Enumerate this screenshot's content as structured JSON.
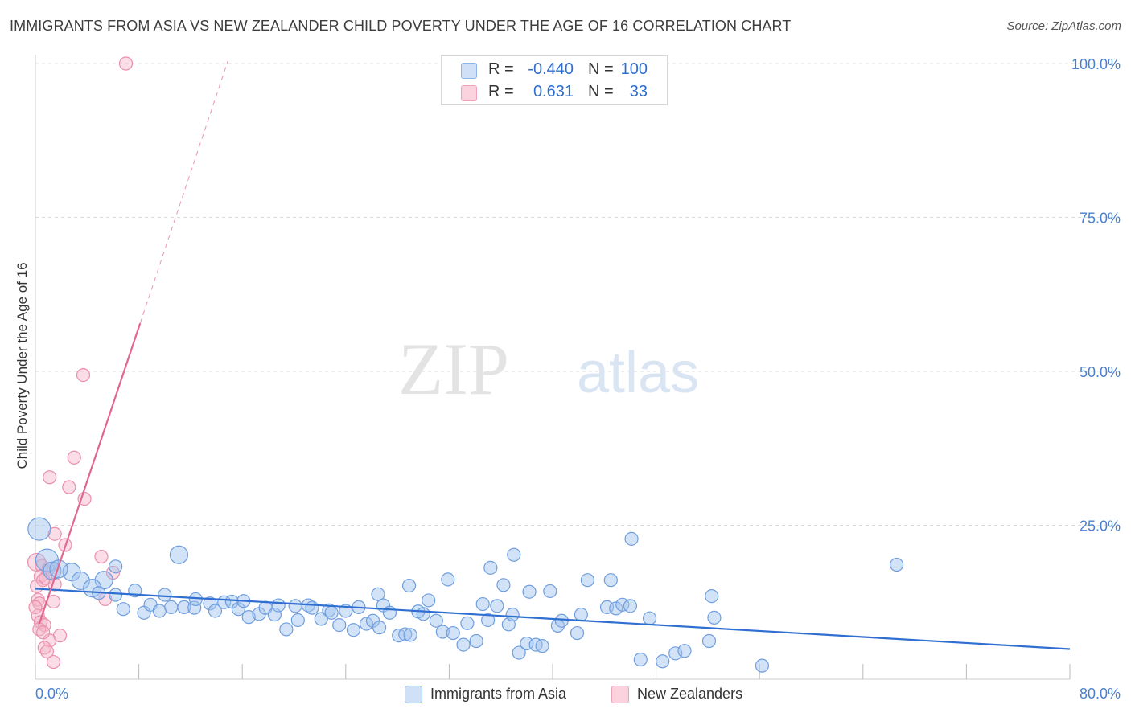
{
  "title": "IMMIGRANTS FROM ASIA VS NEW ZEALANDER CHILD POVERTY UNDER THE AGE OF 16 CORRELATION CHART",
  "source": "Source: ZipAtlas.com",
  "watermark": {
    "zip": "ZIP",
    "atlas": "atlas"
  },
  "legend": [
    {
      "r_label": "R =",
      "r_value": "-0.440",
      "n_label": "N =",
      "n_value": "100",
      "color": "#9ec1ee"
    },
    {
      "r_label": "R =",
      "r_value": "0.631",
      "n_label": "N =",
      "n_value": "33",
      "color": "#f5b3c7"
    }
  ],
  "bottom_legend": [
    {
      "label": "Immigrants from Asia",
      "color": "#9ec1ee"
    },
    {
      "label": "New Zealanders",
      "color": "#f5b3c7"
    }
  ],
  "colors": {
    "blue_fill": "#9ec1ee",
    "blue_stroke": "#6f9ede",
    "blue_line": "#2f6fd1",
    "pink_fill": "#f5b3c7",
    "pink_stroke": "#ea8fac",
    "pink_line": "#e2678f",
    "tick_label": "#4a80cf",
    "grid": "#dcdcdc"
  },
  "chart_data": {
    "type": "scatter",
    "title": "IMMIGRANTS FROM ASIA VS NEW ZEALANDER CHILD POVERTY UNDER THE AGE OF 16 CORRELATION CHART",
    "xlabel": "",
    "ylabel": "Child Poverty Under the Age of 16",
    "xlim": [
      0,
      80
    ],
    "ylim": [
      0,
      100
    ],
    "x_tick_labels": [
      {
        "value": 0,
        "label": "0.0%"
      },
      {
        "value": 80,
        "label": "80.0%"
      }
    ],
    "y_tick_labels": [
      {
        "value": 25,
        "label": "25.0%"
      },
      {
        "value": 50,
        "label": "50.0%"
      },
      {
        "value": 75,
        "label": "75.0%"
      },
      {
        "value": 100,
        "label": "100.0%"
      }
    ],
    "grid": true,
    "legend_position": "top-center",
    "series": [
      {
        "name": "Immigrants from Asia",
        "r": -0.44,
        "n": 100,
        "trend": {
          "x": [
            0,
            80
          ],
          "y": [
            14.7,
            4.9
          ]
        },
        "points": [
          [
            0.3,
            24.4,
            "xl"
          ],
          [
            0.9,
            19.3,
            "xl"
          ],
          [
            1.3,
            17.6,
            "l"
          ],
          [
            2.8,
            17.4,
            "l"
          ],
          [
            1.8,
            17.9,
            "l"
          ],
          [
            3.5,
            16.0,
            "l"
          ],
          [
            5.3,
            16.1,
            "l"
          ],
          [
            4.4,
            14.8,
            "l"
          ],
          [
            6.2,
            18.3,
            "m"
          ],
          [
            4.9,
            14.0,
            "m"
          ],
          [
            6.2,
            13.7,
            "m"
          ],
          [
            7.7,
            14.4,
            "m"
          ],
          [
            6.8,
            11.4,
            "m"
          ],
          [
            8.4,
            10.8,
            "m"
          ],
          [
            8.9,
            12.1,
            "m"
          ],
          [
            9.6,
            11.1,
            "m"
          ],
          [
            10.0,
            13.7,
            "m"
          ],
          [
            10.5,
            11.7,
            "m"
          ],
          [
            11.1,
            20.2,
            "l"
          ],
          [
            11.5,
            11.7,
            "m"
          ],
          [
            12.3,
            11.6,
            "m"
          ],
          [
            12.4,
            13.0,
            "m"
          ],
          [
            13.5,
            12.3,
            "m"
          ],
          [
            13.9,
            11.1,
            "m"
          ],
          [
            14.6,
            12.5,
            "m"
          ],
          [
            15.2,
            12.6,
            "m"
          ],
          [
            15.7,
            11.4,
            "m"
          ],
          [
            16.1,
            12.7,
            "m"
          ],
          [
            16.5,
            10.1,
            "m"
          ],
          [
            17.3,
            10.6,
            "m"
          ],
          [
            17.8,
            11.6,
            "m"
          ],
          [
            18.5,
            10.5,
            "m"
          ],
          [
            18.8,
            12.0,
            "m"
          ],
          [
            19.4,
            8.1,
            "m"
          ],
          [
            20.1,
            11.9,
            "m"
          ],
          [
            20.3,
            9.6,
            "m"
          ],
          [
            21.1,
            12.0,
            "m"
          ],
          [
            21.4,
            11.6,
            "m"
          ],
          [
            22.1,
            9.8,
            "m"
          ],
          [
            22.7,
            11.2,
            "m"
          ],
          [
            22.9,
            10.8,
            "m"
          ],
          [
            23.5,
            8.8,
            "m"
          ],
          [
            24.0,
            11.1,
            "m"
          ],
          [
            24.6,
            8.0,
            "m"
          ],
          [
            25.0,
            11.7,
            "m"
          ],
          [
            25.6,
            9.0,
            "m"
          ],
          [
            26.1,
            9.5,
            "m"
          ],
          [
            26.5,
            13.8,
            "m"
          ],
          [
            26.9,
            12.0,
            "m"
          ],
          [
            27.4,
            10.8,
            "m"
          ],
          [
            28.1,
            7.1,
            "m"
          ],
          [
            28.6,
            7.3,
            "m"
          ],
          [
            29.0,
            7.2,
            "m"
          ],
          [
            28.9,
            15.2,
            "m"
          ],
          [
            29.6,
            11.0,
            "m"
          ],
          [
            30.0,
            10.6,
            "m"
          ],
          [
            30.4,
            12.8,
            "m"
          ],
          [
            31.0,
            9.5,
            "m"
          ],
          [
            31.5,
            7.7,
            "m"
          ],
          [
            31.9,
            16.2,
            "m"
          ],
          [
            32.3,
            7.5,
            "m"
          ],
          [
            33.1,
            5.6,
            "m"
          ],
          [
            33.4,
            9.1,
            "m"
          ],
          [
            34.1,
            6.2,
            "m"
          ],
          [
            34.6,
            12.2,
            "m"
          ],
          [
            35.0,
            9.6,
            "m"
          ],
          [
            35.2,
            18.1,
            "m"
          ],
          [
            35.7,
            11.9,
            "m"
          ],
          [
            36.2,
            15.3,
            "m"
          ],
          [
            36.6,
            8.9,
            "m"
          ],
          [
            36.9,
            10.5,
            "m"
          ],
          [
            37.4,
            4.3,
            "m"
          ],
          [
            38.0,
            5.8,
            "m"
          ],
          [
            38.2,
            14.2,
            "m"
          ],
          [
            38.7,
            5.6,
            "m"
          ],
          [
            39.2,
            5.4,
            "m"
          ],
          [
            39.8,
            14.3,
            "m"
          ],
          [
            40.4,
            8.7,
            "m"
          ],
          [
            40.7,
            9.5,
            "m"
          ],
          [
            41.9,
            7.5,
            "m"
          ],
          [
            42.2,
            10.5,
            "m"
          ],
          [
            42.7,
            16.1,
            "m"
          ],
          [
            44.2,
            11.7,
            "m"
          ],
          [
            44.5,
            16.1,
            "m"
          ],
          [
            44.9,
            11.5,
            "m"
          ],
          [
            45.4,
            12.1,
            "m"
          ],
          [
            46.0,
            11.9,
            "m"
          ],
          [
            46.1,
            22.8,
            "m"
          ],
          [
            46.8,
            3.2,
            "m"
          ],
          [
            48.5,
            2.9,
            "m"
          ],
          [
            47.5,
            9.9,
            "m"
          ],
          [
            49.5,
            4.2,
            "m"
          ],
          [
            50.2,
            4.6,
            "m"
          ],
          [
            52.1,
            6.2,
            "m"
          ],
          [
            52.3,
            13.5,
            "m"
          ],
          [
            52.5,
            10.0,
            "m"
          ],
          [
            56.2,
            2.2,
            "m"
          ],
          [
            66.6,
            18.6,
            "m"
          ],
          [
            37.0,
            20.2,
            "m"
          ],
          [
            26.6,
            8.4,
            "m"
          ]
        ]
      },
      {
        "name": "New Zealanders",
        "r": 0.631,
        "n": 33,
        "trend": {
          "x": [
            0.3,
            8.1
          ],
          "y": [
            9.0,
            57.8
          ]
        },
        "trend_extension": {
          "x": [
            8.1,
            14.9
          ],
          "y": [
            57.8,
            100.5
          ]
        },
        "points": [
          [
            7.0,
            100.0,
            "m"
          ],
          [
            3.7,
            49.4,
            "m"
          ],
          [
            3.0,
            36.0,
            "m"
          ],
          [
            1.1,
            32.8,
            "m"
          ],
          [
            2.6,
            31.2,
            "m"
          ],
          [
            3.8,
            29.3,
            "m"
          ],
          [
            1.5,
            23.6,
            "m"
          ],
          [
            2.3,
            21.8,
            "m"
          ],
          [
            5.1,
            19.9,
            "m"
          ],
          [
            6.0,
            17.3,
            "m"
          ],
          [
            0.1,
            19.0,
            "l"
          ],
          [
            0.5,
            18.4,
            "m"
          ],
          [
            1.0,
            17.9,
            "m"
          ],
          [
            0.4,
            16.7,
            "m"
          ],
          [
            0.8,
            16.4,
            "m"
          ],
          [
            1.5,
            15.4,
            "m"
          ],
          [
            0.6,
            16.1,
            "m"
          ],
          [
            0.1,
            15.1,
            "m"
          ],
          [
            0.2,
            12.9,
            "m"
          ],
          [
            0.3,
            12.3,
            "m"
          ],
          [
            1.4,
            12.6,
            "m"
          ],
          [
            5.4,
            13.0,
            "m"
          ],
          [
            0.2,
            10.3,
            "m"
          ],
          [
            0.4,
            9.3,
            "m"
          ],
          [
            0.7,
            8.8,
            "m"
          ],
          [
            0.3,
            8.1,
            "m"
          ],
          [
            1.9,
            7.1,
            "m"
          ],
          [
            1.1,
            6.3,
            "m"
          ],
          [
            0.7,
            5.1,
            "m"
          ],
          [
            0.9,
            4.5,
            "m"
          ],
          [
            1.4,
            2.8,
            "m"
          ],
          [
            0.0,
            11.7,
            "m"
          ],
          [
            0.6,
            7.6,
            "m"
          ]
        ]
      }
    ]
  }
}
